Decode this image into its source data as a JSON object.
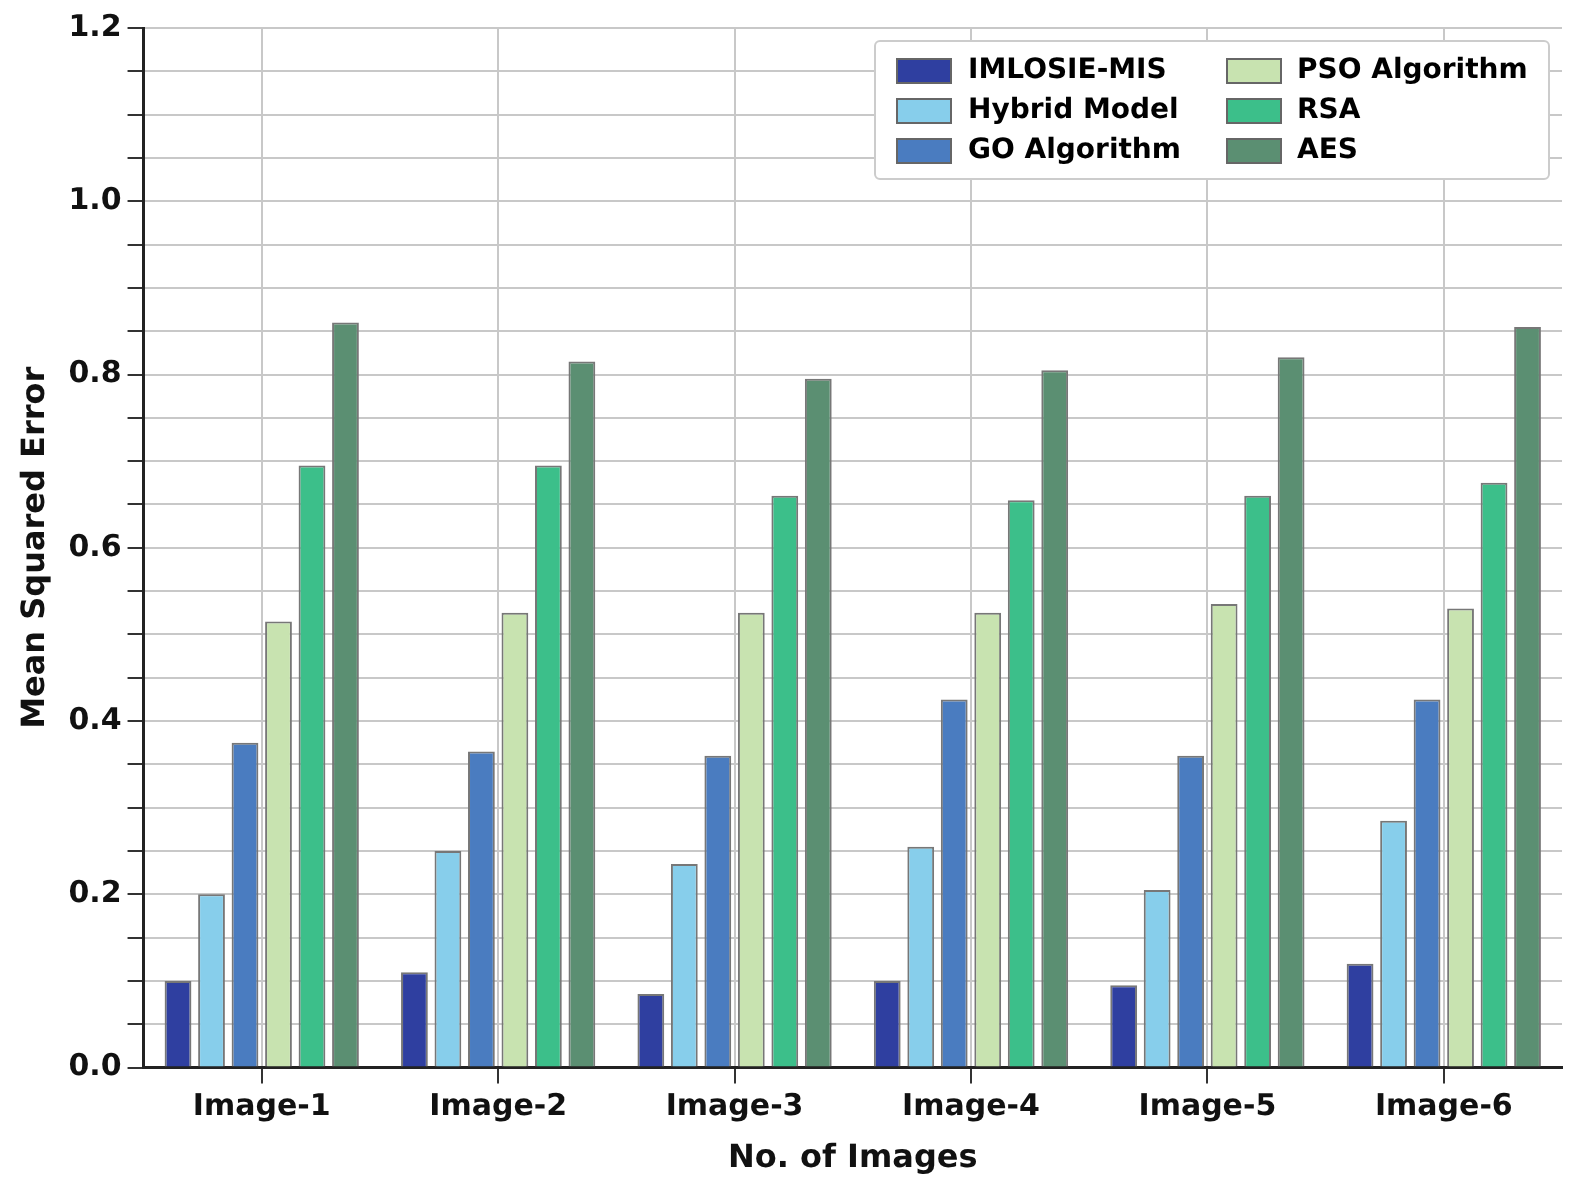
{
  "chart_data": {
    "type": "bar",
    "xlabel": "No. of Images",
    "ylabel": "Mean Squared Error",
    "categories": [
      "Image-1",
      "Image-2",
      "Image-3",
      "Image-4",
      "Image-5",
      "Image-6"
    ],
    "series": [
      {
        "name": "IMLOSIE-MIS",
        "color": "#2f3fa0",
        "values": [
          0.1,
          0.11,
          0.085,
          0.1,
          0.095,
          0.12
        ]
      },
      {
        "name": "Hybrid Model",
        "color": "#87ceeb",
        "values": [
          0.2,
          0.25,
          0.235,
          0.255,
          0.205,
          0.285
        ]
      },
      {
        "name": "GO Algorithm",
        "color": "#4a7cc0",
        "values": [
          0.375,
          0.365,
          0.36,
          0.425,
          0.36,
          0.425
        ]
      },
      {
        "name": "PSO Algorithm",
        "color": "#c8e3b0",
        "values": [
          0.515,
          0.525,
          0.525,
          0.525,
          0.535,
          0.53
        ]
      },
      {
        "name": "RSA",
        "color": "#3cbf8a",
        "values": [
          0.695,
          0.695,
          0.66,
          0.655,
          0.66,
          0.675
        ]
      },
      {
        "name": "AES",
        "color": "#5b8f72",
        "values": [
          0.86,
          0.815,
          0.795,
          0.805,
          0.82,
          0.855
        ]
      }
    ],
    "ylim": [
      0,
      1.2
    ],
    "yticks": [
      {
        "value": 0,
        "label": "0.0"
      },
      {
        "value": 0.05,
        "label": null
      },
      {
        "value": 0.1,
        "label": null
      },
      {
        "value": 0.15,
        "label": null
      },
      {
        "value": 0.2,
        "label": "0.2"
      },
      {
        "value": 0.25,
        "label": null
      },
      {
        "value": 0.3,
        "label": null
      },
      {
        "value": 0.35,
        "label": null
      },
      {
        "value": 0.4,
        "label": "0.4"
      },
      {
        "value": 0.45,
        "label": null
      },
      {
        "value": 0.5,
        "label": null
      },
      {
        "value": 0.55,
        "label": null
      },
      {
        "value": 0.6,
        "label": "0.6"
      },
      {
        "value": 0.65,
        "label": null
      },
      {
        "value": 0.7,
        "label": null
      },
      {
        "value": 0.75,
        "label": null
      },
      {
        "value": 0.8,
        "label": "0.8"
      },
      {
        "value": 0.85,
        "label": null
      },
      {
        "value": 0.9,
        "label": null
      },
      {
        "value": 0.95,
        "label": null
      },
      {
        "value": 1.0,
        "label": "1.0"
      },
      {
        "value": 1.05,
        "label": null
      },
      {
        "value": 1.1,
        "label": null
      },
      {
        "value": 1.15,
        "label": null
      },
      {
        "value": 1.2,
        "label": "1.2"
      }
    ],
    "grid": true,
    "legend": "top right"
  }
}
